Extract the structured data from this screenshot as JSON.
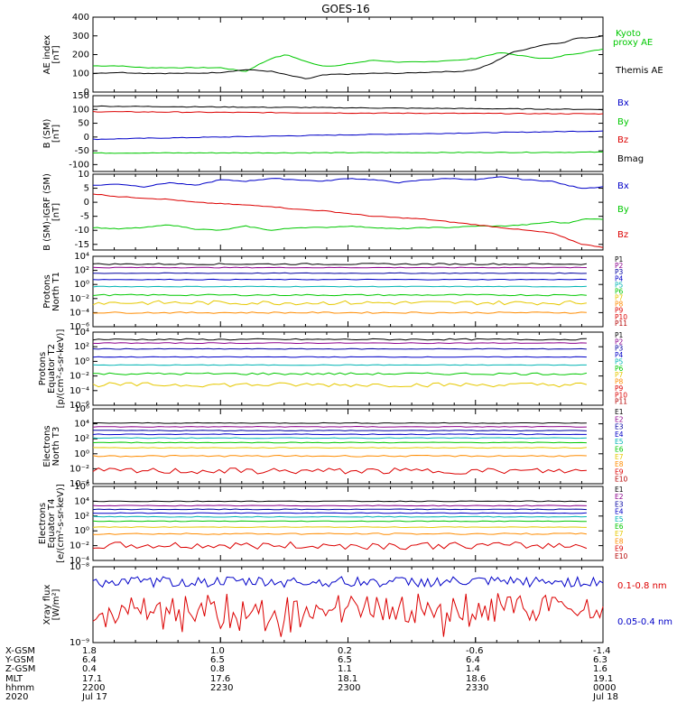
{
  "title": "GOES-16",
  "colors": {
    "black": "#000000",
    "blue": "#0000c8",
    "green": "#00c800",
    "red": "#dc0000",
    "cyan": "#00c8c8",
    "yellow": "#e6c800",
    "orange": "#ff8c00",
    "purple": "#8c008c",
    "navy": "#0000a0",
    "teal": "#00b4b4",
    "darkred": "#b40000"
  },
  "chart_data": [
    {
      "type": "line",
      "panel": "ae",
      "ylabel": [
        "AE index",
        "[nT]"
      ],
      "ylim": [
        0,
        400
      ],
      "yticks": [
        "0",
        "100",
        "200",
        "300",
        "400"
      ],
      "series": [
        {
          "name": "Kyoto",
          "name2": "proxy AE",
          "color": "green",
          "x": [
            0,
            0.05,
            0.1,
            0.15,
            0.2,
            0.25,
            0.3,
            0.32,
            0.35,
            0.38,
            0.42,
            0.45,
            0.48,
            0.5,
            0.55,
            0.6,
            0.65,
            0.7,
            0.72,
            0.75,
            0.78,
            0.8,
            0.85,
            0.88,
            0.9,
            0.93,
            0.96,
            1.0
          ],
          "y": [
            140,
            140,
            130,
            130,
            130,
            130,
            110,
            140,
            180,
            200,
            160,
            140,
            140,
            150,
            170,
            160,
            160,
            170,
            170,
            180,
            200,
            210,
            190,
            180,
            180,
            200,
            210,
            230
          ]
        },
        {
          "name": "Themis AE",
          "color": "black",
          "x": [
            0,
            0.05,
            0.1,
            0.15,
            0.2,
            0.25,
            0.3,
            0.35,
            0.4,
            0.42,
            0.45,
            0.48,
            0.5,
            0.55,
            0.6,
            0.65,
            0.7,
            0.72,
            0.75,
            0.78,
            0.8,
            0.82,
            0.85,
            0.88,
            0.9,
            0.92,
            0.95,
            0.97,
            1.0
          ],
          "y": [
            100,
            105,
            100,
            100,
            100,
            105,
            120,
            110,
            80,
            70,
            90,
            95,
            95,
            100,
            100,
            105,
            110,
            110,
            120,
            150,
            180,
            210,
            230,
            250,
            260,
            260,
            290,
            290,
            300
          ]
        }
      ]
    },
    {
      "type": "line",
      "panel": "bsm",
      "ylabel": [
        "B (SM)",
        "[nT]"
      ],
      "ylim": [
        -125,
        150
      ],
      "yticks": [
        "-100",
        "-50",
        "0",
        "50",
        "100",
        "150"
      ],
      "series": [
        {
          "name": "Bx",
          "color": "blue",
          "x": [
            0,
            0.5,
            1.0
          ],
          "y": [
            -8,
            8,
            22
          ]
        },
        {
          "name": "By",
          "color": "green",
          "x": [
            0,
            0.5,
            1.0
          ],
          "y": [
            -58,
            -57,
            -55
          ]
        },
        {
          "name": "Bz",
          "color": "red",
          "x": [
            0,
            0.5,
            1.0
          ],
          "y": [
            92,
            87,
            84
          ]
        },
        {
          "name": "Bmag",
          "color": "black",
          "x": [
            0,
            0.5,
            1.0
          ],
          "y": [
            112,
            106,
            100
          ]
        }
      ]
    },
    {
      "type": "line",
      "panel": "bigrf",
      "ylabel": [
        "B (SM)-IGRF (SM)",
        "[nT]"
      ],
      "ylim": [
        -17,
        10
      ],
      "yticks": [
        "-15",
        "-10",
        "-5",
        "0",
        "5",
        "10"
      ],
      "series": [
        {
          "name": "Bx",
          "color": "blue",
          "x": [
            0,
            0.05,
            0.1,
            0.15,
            0.2,
            0.25,
            0.3,
            0.35,
            0.4,
            0.45,
            0.5,
            0.55,
            0.6,
            0.65,
            0.7,
            0.75,
            0.8,
            0.85,
            0.9,
            0.93,
            0.96,
            1.0
          ],
          "y": [
            6,
            6.5,
            5.5,
            7,
            6,
            8,
            7.5,
            8.5,
            8,
            7.5,
            8.5,
            8,
            7,
            8,
            8.5,
            8,
            9,
            8,
            7.5,
            6,
            5,
            5.5
          ]
        },
        {
          "name": "By",
          "color": "green",
          "x": [
            0,
            0.05,
            0.1,
            0.15,
            0.2,
            0.25,
            0.3,
            0.35,
            0.4,
            0.45,
            0.5,
            0.55,
            0.6,
            0.65,
            0.7,
            0.75,
            0.8,
            0.85,
            0.9,
            0.93,
            0.96,
            1.0
          ],
          "y": [
            -9,
            -9.5,
            -9,
            -8,
            -9.5,
            -10,
            -8.5,
            -10,
            -9,
            -9,
            -8.5,
            -9,
            -9.5,
            -9,
            -9,
            -8.5,
            -8.5,
            -8,
            -7,
            -7.5,
            -6,
            -6
          ]
        },
        {
          "name": "Bz",
          "color": "red",
          "x": [
            0,
            0.05,
            0.1,
            0.15,
            0.2,
            0.25,
            0.3,
            0.35,
            0.4,
            0.45,
            0.5,
            0.55,
            0.6,
            0.65,
            0.7,
            0.75,
            0.8,
            0.85,
            0.9,
            0.93,
            0.96,
            1.0
          ],
          "y": [
            3,
            2,
            1.5,
            1,
            0,
            -0.5,
            -1,
            -1.5,
            -2.5,
            -3,
            -4,
            -5,
            -5.5,
            -6,
            -7,
            -8,
            -9,
            -10,
            -11,
            -13,
            -15,
            -16
          ]
        }
      ]
    },
    {
      "type": "line",
      "panel": "protons-t1",
      "yscale": "log",
      "ylabel": [
        "Protons",
        "North T1"
      ],
      "ylim_exp": [
        -6,
        4
      ],
      "yticks": [
        "10⁴",
        "10²",
        "10⁰",
        "10⁻²",
        "10⁻⁴",
        "10⁻⁶"
      ],
      "ytick_exps": [
        4,
        2,
        0,
        -2,
        -4,
        -6
      ],
      "channels": [
        "P1",
        "P2",
        "P3",
        "P4",
        "P5",
        "P6",
        "P7",
        "P8",
        "P9",
        "P10",
        "P11"
      ],
      "channel_colors": [
        "black",
        "purple",
        "navy",
        "blue",
        "teal",
        "green",
        "yellow",
        "orange",
        "red",
        "red",
        "darkred"
      ],
      "series_log": [
        {
          "name": "P1",
          "level": 2.9,
          "noise": 0.1
        },
        {
          "name": "P2",
          "level": 2.4,
          "noise": 0.05
        },
        {
          "name": "P3",
          "level": 1.6,
          "noise": 0.05
        },
        {
          "name": "P4",
          "level": 0.7,
          "noise": 0.05
        },
        {
          "name": "P5",
          "level": -0.3,
          "noise": 0.05
        },
        {
          "name": "P6",
          "level": -1.5,
          "noise": 0.1
        },
        {
          "name": "P7",
          "level": -2.6,
          "noise": 0.3
        },
        {
          "name": "P8",
          "level": -4.0,
          "noise": 0.1
        }
      ]
    },
    {
      "type": "line",
      "panel": "protons-t2",
      "yscale": "log",
      "ylabel": [
        "Protons",
        "Equator T2",
        "[p/(cm²-s-sr-keV)]"
      ],
      "ylim_exp": [
        -6,
        4
      ],
      "yticks": [
        "10⁴",
        "10²",
        "10⁰",
        "10⁻²",
        "10⁻⁴",
        "10⁻⁶"
      ],
      "ytick_exps": [
        4,
        2,
        0,
        -2,
        -4,
        -6
      ],
      "channels": [
        "P1",
        "P2",
        "P3",
        "P4",
        "P5",
        "P6",
        "P7",
        "P8",
        "P9",
        "P10",
        "P11"
      ],
      "channel_colors": [
        "black",
        "purple",
        "navy",
        "blue",
        "teal",
        "green",
        "yellow",
        "orange",
        "red",
        "red",
        "darkred"
      ],
      "series_log": [
        {
          "name": "P1",
          "level": 3.0,
          "noise": 0.1
        },
        {
          "name": "P2",
          "level": 2.5,
          "noise": 0.05
        },
        {
          "name": "P3",
          "level": 1.7,
          "noise": 0.05
        },
        {
          "name": "P4",
          "level": 0.6,
          "noise": 0.05
        },
        {
          "name": "P5",
          "level": -0.5,
          "noise": 0.05
        },
        {
          "name": "P6",
          "level": -1.7,
          "noise": 0.15
        },
        {
          "name": "P7",
          "level": -3.2,
          "noise": 0.3
        }
      ]
    },
    {
      "type": "line",
      "panel": "electrons-t3",
      "yscale": "log",
      "ylabel": [
        "Electrons",
        "North T3"
      ],
      "ylim_exp": [
        -4,
        6
      ],
      "yticks": [
        "10⁶",
        "10⁴",
        "10²",
        "10⁰",
        "10⁻²",
        "10⁻⁴"
      ],
      "ytick_exps": [
        6,
        4,
        2,
        0,
        -2,
        -4
      ],
      "channels": [
        "E1",
        "E2",
        "E3",
        "E4",
        "E5",
        "E6",
        "E7",
        "E8",
        "E9",
        "E10"
      ],
      "channel_colors": [
        "black",
        "purple",
        "navy",
        "blue",
        "teal",
        "green",
        "yellow",
        "orange",
        "red",
        "darkred"
      ],
      "series_log": [
        {
          "name": "E1",
          "level": 4.1,
          "noise": 0.05
        },
        {
          "name": "E2",
          "level": 3.6,
          "noise": 0.05
        },
        {
          "name": "E3",
          "level": 3.1,
          "noise": 0.05
        },
        {
          "name": "E4",
          "level": 2.6,
          "noise": 0.05
        },
        {
          "name": "E5",
          "level": 2.1,
          "noise": 0.05
        },
        {
          "name": "E6",
          "level": 1.5,
          "noise": 0.05
        },
        {
          "name": "E7",
          "level": 0.8,
          "noise": 0.05
        },
        {
          "name": "E8",
          "level": -0.3,
          "noise": 0.1
        },
        {
          "name": "E9",
          "level": -2.3,
          "noise": 0.4
        }
      ]
    },
    {
      "type": "line",
      "panel": "electrons-t4",
      "yscale": "log",
      "ylabel": [
        "Electrons",
        "Equator T4",
        "[e/(cm²-s-sr-keV)]"
      ],
      "ylim_exp": [
        -4,
        6
      ],
      "yticks": [
        "10⁶",
        "10⁴",
        "10²",
        "10⁰",
        "10⁻²",
        "10⁻⁴"
      ],
      "ytick_exps": [
        6,
        4,
        2,
        0,
        -2,
        -4
      ],
      "channels": [
        "E1",
        "E2",
        "E3",
        "E4",
        "E5",
        "E6",
        "E7",
        "E8",
        "E9",
        "E10"
      ],
      "channel_colors": [
        "black",
        "purple",
        "navy",
        "blue",
        "teal",
        "green",
        "yellow",
        "orange",
        "red",
        "darkred"
      ],
      "series_log": [
        {
          "name": "E1",
          "level": 4.0,
          "noise": 0.05
        },
        {
          "name": "E2",
          "level": 3.4,
          "noise": 0.05
        },
        {
          "name": "E3",
          "level": 2.9,
          "noise": 0.05
        },
        {
          "name": "E4",
          "level": 2.4,
          "noise": 0.05
        },
        {
          "name": "E5",
          "level": 1.9,
          "noise": 0.05
        },
        {
          "name": "E6",
          "level": 1.3,
          "noise": 0.05
        },
        {
          "name": "E7",
          "level": 0.5,
          "noise": 0.05
        },
        {
          "name": "E8",
          "level": -0.4,
          "noise": 0.1
        },
        {
          "name": "E9",
          "level": -2.0,
          "noise": 0.5
        }
      ]
    },
    {
      "type": "line",
      "panel": "xray",
      "yscale": "log",
      "ylabel": [
        "Xray flux",
        "[W/m²]"
      ],
      "ylim_exp": [
        -9,
        -8
      ],
      "yticks": [
        "10⁻⁸",
        "10⁻⁹"
      ],
      "ytick_exps": [
        -8,
        -9
      ],
      "series_log": [
        {
          "name": "0.1-0.8 nm",
          "color": "red",
          "level": -8.55,
          "noise": 0.2
        },
        {
          "name": "0.05-0.4 nm",
          "color": "blue",
          "level": -8.2,
          "noise": 0.07
        }
      ]
    }
  ],
  "xaxis": {
    "rows": [
      "X-GSM",
      "Y-GSM",
      "Z-GSM",
      "MLT",
      "hhmm",
      "2020"
    ],
    "columns": [
      [
        "1.8",
        "6.4",
        "0.4",
        "17.1",
        "2200",
        "Jul 17"
      ],
      [
        "1.0",
        "6.5",
        "0.8",
        "17.6",
        "2230",
        ""
      ],
      [
        "0.2",
        "6.5",
        "1.1",
        "18.1",
        "2300",
        ""
      ],
      [
        "-0.6",
        "6.4",
        "1.4",
        "18.6",
        "2330",
        ""
      ],
      [
        "-1.4",
        "6.3",
        "1.6",
        "19.1",
        "0000",
        "Jul 18"
      ]
    ]
  }
}
